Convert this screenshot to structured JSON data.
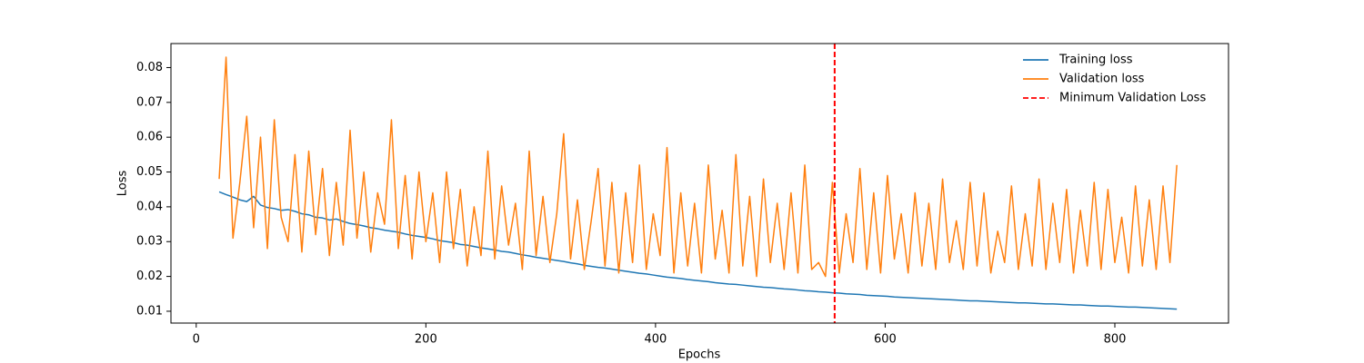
{
  "chart_data": {
    "type": "line",
    "xlabel": "Epochs",
    "ylabel": "Loss",
    "x": [
      20,
      26,
      32,
      38,
      44,
      50,
      56,
      62,
      68,
      74,
      80,
      86,
      92,
      98,
      104,
      110,
      116,
      122,
      128,
      134,
      140,
      146,
      152,
      158,
      164,
      170,
      176,
      182,
      188,
      194,
      200,
      206,
      212,
      218,
      224,
      230,
      236,
      242,
      248,
      254,
      260,
      266,
      272,
      278,
      284,
      290,
      296,
      302,
      308,
      314,
      320,
      326,
      332,
      338,
      344,
      350,
      356,
      362,
      368,
      374,
      380,
      386,
      392,
      398,
      404,
      410,
      416,
      422,
      428,
      434,
      440,
      446,
      452,
      458,
      464,
      470,
      476,
      482,
      488,
      494,
      500,
      506,
      512,
      518,
      524,
      530,
      536,
      542,
      548,
      554,
      560,
      566,
      572,
      578,
      584,
      590,
      596,
      602,
      608,
      614,
      620,
      626,
      632,
      638,
      644,
      650,
      656,
      662,
      668,
      674,
      680,
      686,
      692,
      698,
      704,
      710,
      716,
      722,
      728,
      734,
      740,
      746,
      752,
      758,
      764,
      770,
      776,
      782,
      788,
      794,
      800,
      806,
      812,
      818,
      824,
      830,
      836,
      842,
      848,
      854
    ],
    "series": [
      {
        "name": "Training loss",
        "color": "#1f77b4",
        "values": [
          0.0443,
          0.0435,
          0.0428,
          0.042,
          0.0415,
          0.043,
          0.0405,
          0.0398,
          0.0395,
          0.039,
          0.0392,
          0.0387,
          0.038,
          0.0377,
          0.037,
          0.0368,
          0.0362,
          0.0365,
          0.0358,
          0.0352,
          0.0349,
          0.0345,
          0.034,
          0.0337,
          0.0333,
          0.033,
          0.0327,
          0.0322,
          0.0318,
          0.0315,
          0.0312,
          0.0308,
          0.0303,
          0.03,
          0.0297,
          0.0292,
          0.029,
          0.0286,
          0.0282,
          0.0279,
          0.0276,
          0.0272,
          0.027,
          0.0266,
          0.0262,
          0.0259,
          0.0255,
          0.0252,
          0.0249,
          0.0246,
          0.0243,
          0.0239,
          0.0236,
          0.0232,
          0.0229,
          0.0226,
          0.0224,
          0.0221,
          0.0218,
          0.0215,
          0.0212,
          0.0209,
          0.0207,
          0.0204,
          0.0201,
          0.0198,
          0.0196,
          0.0194,
          0.0191,
          0.0189,
          0.0187,
          0.0185,
          0.0182,
          0.018,
          0.0178,
          0.0177,
          0.0175,
          0.0173,
          0.0171,
          0.0169,
          0.0168,
          0.0166,
          0.0164,
          0.0163,
          0.0161,
          0.0159,
          0.0158,
          0.0156,
          0.0155,
          0.0153,
          0.0152,
          0.015,
          0.0149,
          0.0148,
          0.0146,
          0.0145,
          0.0144,
          0.0143,
          0.0141,
          0.014,
          0.0139,
          0.0138,
          0.0137,
          0.0136,
          0.0135,
          0.0134,
          0.0133,
          0.0132,
          0.0131,
          0.013,
          0.013,
          0.0129,
          0.0128,
          0.0127,
          0.0126,
          0.0125,
          0.0124,
          0.0124,
          0.0123,
          0.0122,
          0.0121,
          0.0121,
          0.012,
          0.0119,
          0.0118,
          0.0118,
          0.0117,
          0.0116,
          0.0115,
          0.0115,
          0.0114,
          0.0113,
          0.0112,
          0.0112,
          0.0111,
          0.011,
          0.0109,
          0.0108,
          0.0107,
          0.0106
        ]
      },
      {
        "name": "Validation loss",
        "color": "#ff7f0e",
        "values": [
          0.048,
          0.083,
          0.031,
          0.047,
          0.066,
          0.034,
          0.06,
          0.028,
          0.065,
          0.037,
          0.03,
          0.055,
          0.027,
          0.056,
          0.032,
          0.051,
          0.026,
          0.047,
          0.029,
          0.062,
          0.031,
          0.05,
          0.027,
          0.044,
          0.035,
          0.065,
          0.028,
          0.049,
          0.025,
          0.05,
          0.03,
          0.044,
          0.024,
          0.05,
          0.028,
          0.045,
          0.023,
          0.04,
          0.026,
          0.056,
          0.025,
          0.046,
          0.029,
          0.041,
          0.022,
          0.056,
          0.026,
          0.043,
          0.024,
          0.038,
          0.061,
          0.025,
          0.042,
          0.022,
          0.036,
          0.051,
          0.023,
          0.047,
          0.021,
          0.044,
          0.024,
          0.052,
          0.022,
          0.038,
          0.026,
          0.057,
          0.021,
          0.044,
          0.023,
          0.041,
          0.021,
          0.052,
          0.025,
          0.039,
          0.021,
          0.055,
          0.023,
          0.043,
          0.02,
          0.048,
          0.024,
          0.041,
          0.022,
          0.044,
          0.021,
          0.052,
          0.022,
          0.024,
          0.02,
          0.047,
          0.021,
          0.038,
          0.024,
          0.051,
          0.022,
          0.044,
          0.021,
          0.049,
          0.025,
          0.038,
          0.021,
          0.044,
          0.023,
          0.041,
          0.022,
          0.048,
          0.024,
          0.036,
          0.022,
          0.047,
          0.023,
          0.044,
          0.021,
          0.033,
          0.024,
          0.046,
          0.022,
          0.038,
          0.023,
          0.048,
          0.022,
          0.041,
          0.024,
          0.045,
          0.021,
          0.039,
          0.023,
          0.047,
          0.022,
          0.045,
          0.024,
          0.037,
          0.021,
          0.046,
          0.023,
          0.042,
          0.022,
          0.046,
          0.024,
          0.052
        ]
      }
    ],
    "vlines": [
      {
        "name": "Minimum Validation Loss",
        "x": 556,
        "color": "red"
      }
    ],
    "xlim": [
      -22,
      899
    ],
    "ylim": [
      0.0066,
      0.0869
    ],
    "xticks": [
      0,
      200,
      400,
      600,
      800
    ],
    "yticks": [
      0.01,
      0.02,
      0.03,
      0.04,
      0.05,
      0.06,
      0.07,
      0.08
    ],
    "legend": "upper right",
    "grid": false
  }
}
